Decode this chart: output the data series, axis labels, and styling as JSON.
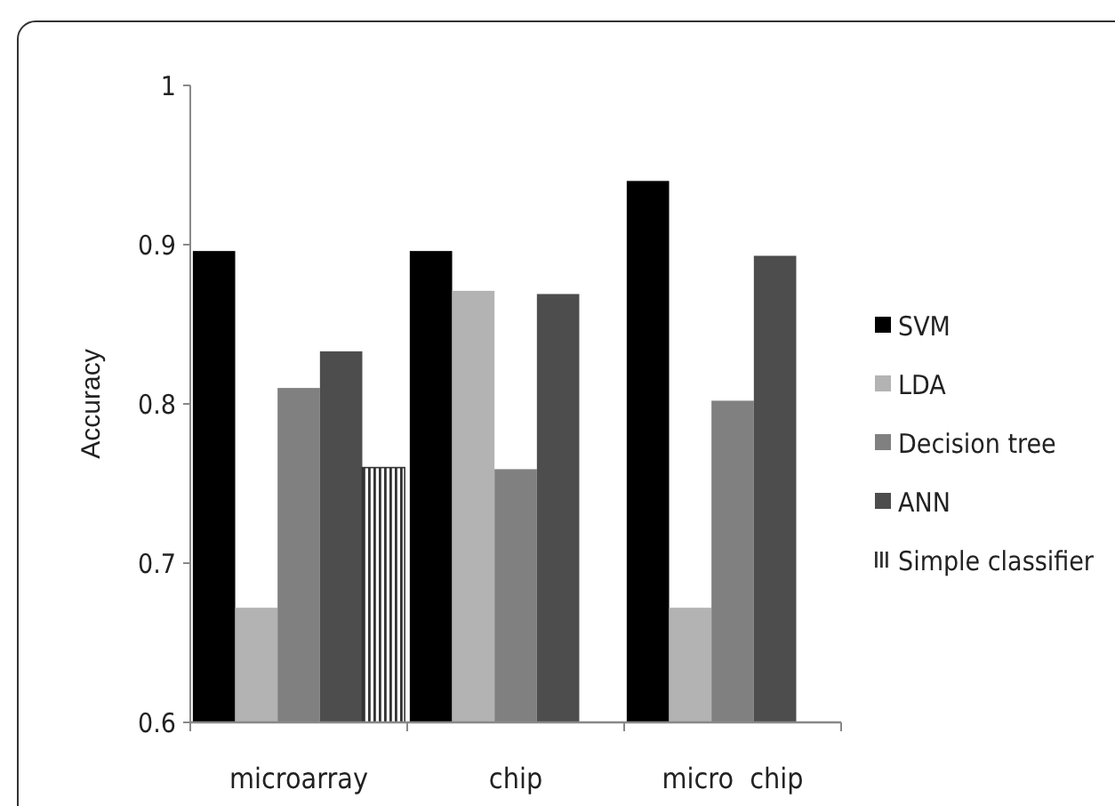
{
  "chart_data": {
    "type": "bar",
    "ylabel": "Accuracy",
    "categories": [
      "microarray",
      "chip",
      "micro  chip"
    ],
    "series": [
      {
        "name": "SVM",
        "color": "#000000",
        "values": [
          0.896,
          0.896,
          0.94
        ]
      },
      {
        "name": "LDA",
        "color": "#b3b3b3",
        "values": [
          0.672,
          0.871,
          0.672
        ]
      },
      {
        "name": "Decision tree",
        "color": "#808080",
        "values": [
          0.81,
          0.759,
          0.802
        ]
      },
      {
        "name": "ANN",
        "color": "#4d4d4d",
        "values": [
          0.833,
          0.869,
          0.893
        ]
      },
      {
        "name": "Simple classifier",
        "color": "#333333",
        "values": [
          0.76,
          null,
          null
        ]
      }
    ],
    "ylim": [
      0.6,
      1
    ],
    "yticks": [
      0.6,
      0.7,
      0.8,
      0.9,
      1
    ],
    "grid": false,
    "legend": "right"
  }
}
